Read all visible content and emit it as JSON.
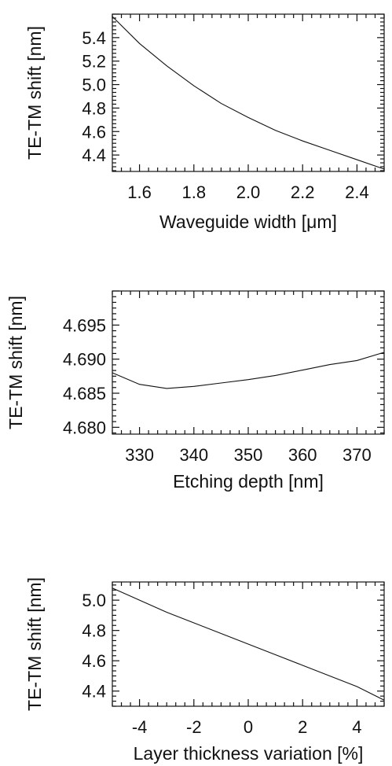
{
  "chart_data": [
    {
      "type": "line",
      "xlabel": "Waveguide width [μm]",
      "ylabel": "TE-TM shift [nm]",
      "xlim": [
        1.5,
        2.5
      ],
      "ylim": [
        4.26,
        5.6
      ],
      "xticks": [
        1.6,
        1.8,
        2.0,
        2.2,
        2.4
      ],
      "xtick_labels": [
        "1.6",
        "1.8",
        "2.0",
        "2.2",
        "2.4"
      ],
      "yticks": [
        4.4,
        4.6,
        4.8,
        5.0,
        5.2,
        5.4
      ],
      "ytick_labels": [
        "4.4",
        "4.6",
        "4.8",
        "5.0",
        "5.2",
        "5.4"
      ],
      "grid": false,
      "series": [
        {
          "x": [
            1.5,
            1.6,
            1.7,
            1.8,
            1.9,
            2.0,
            2.1,
            2.2,
            2.3,
            2.4,
            2.5
          ],
          "y": [
            5.58,
            5.35,
            5.16,
            4.99,
            4.84,
            4.72,
            4.61,
            4.52,
            4.44,
            4.36,
            4.28
          ]
        }
      ]
    },
    {
      "type": "line",
      "xlabel": "Etching depth [nm]",
      "ylabel": "TE-TM shift [nm]",
      "xlim": [
        325,
        375
      ],
      "ylim": [
        4.679,
        4.7
      ],
      "xticks": [
        330,
        340,
        350,
        360,
        370
      ],
      "xtick_labels": [
        "330",
        "340",
        "350",
        "360",
        "370"
      ],
      "yticks": [
        4.68,
        4.685,
        4.69,
        4.695
      ],
      "ytick_labels": [
        "4.680",
        "4.685",
        "4.690",
        "4.695"
      ],
      "grid": false,
      "series": [
        {
          "x": [
            325,
            330,
            335,
            340,
            345,
            350,
            355,
            360,
            365,
            370,
            375
          ],
          "y": [
            4.688,
            4.6863,
            4.6857,
            4.686,
            4.6865,
            4.687,
            4.6876,
            4.6884,
            4.6892,
            4.6898,
            4.691
          ]
        }
      ]
    },
    {
      "type": "line",
      "xlabel": "Layer thickness variation [%]",
      "ylabel": "TE-TM shift [nm]",
      "xlim": [
        -5,
        5
      ],
      "ylim": [
        4.3,
        5.12
      ],
      "xticks": [
        -4,
        -2,
        0,
        2,
        4
      ],
      "xtick_labels": [
        "-4",
        "-2",
        "0",
        "2",
        "4"
      ],
      "yticks": [
        4.4,
        4.6,
        4.8,
        5.0
      ],
      "ytick_labels": [
        "4.4",
        "4.6",
        "4.8",
        "5.0"
      ],
      "grid": false,
      "series": [
        {
          "x": [
            -5,
            -4,
            -3,
            -2,
            -1,
            0,
            1,
            2,
            3,
            4,
            5
          ],
          "y": [
            5.08,
            5.0,
            4.92,
            4.85,
            4.78,
            4.71,
            4.64,
            4.57,
            4.5,
            4.43,
            4.34
          ]
        }
      ]
    }
  ]
}
